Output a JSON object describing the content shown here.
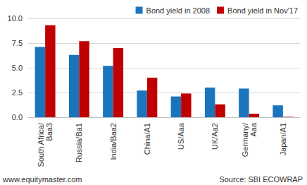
{
  "chart_data": {
    "type": "bar",
    "categories": [
      "South Africa/Baa3",
      "Russia/Ba1",
      "India/Baa2",
      "China/A1",
      "US/Aaa",
      "UK/Aa2",
      "Germany/Aaa",
      "Japan/A1"
    ],
    "series": [
      {
        "name": "Bond yield in 2008",
        "color": "#1a75bc",
        "values": [
          7.1,
          6.3,
          5.2,
          2.7,
          2.1,
          3.0,
          2.9,
          1.2
        ]
      },
      {
        "name": "Bond yield in Nov'17",
        "color": "#c00000",
        "values": [
          9.3,
          7.7,
          7.0,
          4.0,
          2.4,
          1.3,
          0.35,
          0.04
        ]
      }
    ],
    "ylim": [
      0,
      10
    ],
    "yticks": [
      {
        "value": 0,
        "label": "0.0"
      },
      2.5,
      {
        "value": 5,
        "label": "5.0"
      },
      7.5,
      {
        "value": 10,
        "label": "10.0"
      }
    ],
    "grid": true,
    "legend": "top-right",
    "annotations": [
      "www.equitymaster.com",
      "Source: SBI ECOWRAP"
    ]
  }
}
